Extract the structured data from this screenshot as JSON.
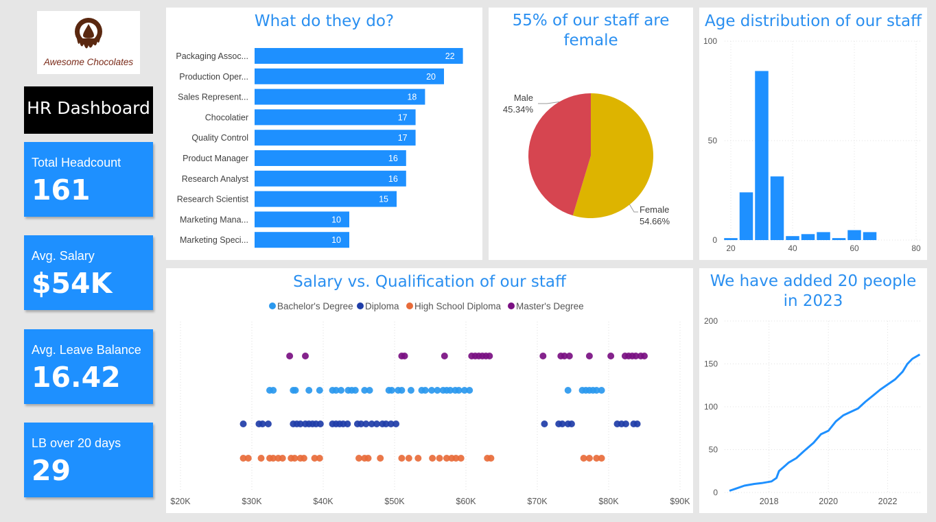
{
  "logo": {
    "text": "Awesome Chocolates"
  },
  "dashboard_title": "HR Dashboard",
  "kpis": [
    {
      "label": "Total Headcount",
      "value": "161"
    },
    {
      "label": "Avg. Salary",
      "value": "$54K"
    },
    {
      "label": "Avg. Leave Balance",
      "value": "16.42"
    },
    {
      "label": "LB over 20 days",
      "value": "29"
    }
  ],
  "colors": {
    "accent": "#1e90ff",
    "title": "#2a8ff0",
    "male": "#d64550",
    "female": "#ddb400"
  },
  "chart_data": [
    {
      "type": "bar",
      "orientation": "horizontal",
      "title": "What do they do?",
      "categories": [
        "Packaging Assoc...",
        "Production Oper...",
        "Sales Represent...",
        "Chocolatier",
        "Quality Control",
        "Product Manager",
        "Research Analyst",
        "Research Scientist",
        "Marketing Mana...",
        "Marketing Speci..."
      ],
      "values": [
        22,
        20,
        18,
        17,
        17,
        16,
        16,
        15,
        10,
        10
      ],
      "value_labels": [
        "22",
        "20",
        "18",
        "17",
        "17",
        "16",
        "16",
        "15",
        "10",
        "10"
      ]
    },
    {
      "type": "pie",
      "title": "55% of our staff are female",
      "slices": [
        {
          "name": "Male",
          "value": 45.34,
          "label": "45.34%",
          "color": "#d64550"
        },
        {
          "name": "Female",
          "value": 54.66,
          "label": "54.66%",
          "color": "#ddb400"
        }
      ]
    },
    {
      "type": "bar",
      "title": "Age distribution of our staff",
      "bin_width": 5,
      "bins": [
        20,
        25,
        30,
        35,
        40,
        45,
        50,
        55,
        60,
        65
      ],
      "values": [
        1,
        24,
        85,
        32,
        2,
        3,
        4,
        1,
        5,
        4
      ],
      "xlim": [
        18,
        82
      ],
      "ylim": [
        0,
        100
      ],
      "xticks": [
        "20",
        "40",
        "60",
        "80"
      ],
      "yticks": [
        "0",
        "50",
        "100"
      ],
      "grid": true
    },
    {
      "type": "scatter",
      "title": "Salary vs. Qualification of our staff",
      "legend_position": "top",
      "xlim": [
        20000,
        90000
      ],
      "xticks": [
        "$20K",
        "$30K",
        "$40K",
        "$50K",
        "$60K",
        "$70K",
        "$80K",
        "$90K"
      ],
      "series": [
        {
          "name": "Bachelor's Degree",
          "color": "#2a98ee",
          "x": [
            32500,
            33000,
            35800,
            36100,
            38000,
            39500,
            41300,
            41800,
            42500,
            43500,
            44000,
            44500,
            45800,
            46500,
            49200,
            49600,
            50500,
            51000,
            52300,
            53800,
            54300,
            55200,
            56000,
            56800,
            57300,
            57800,
            58500,
            59000,
            59800,
            60500,
            74300,
            76300,
            76800,
            77300,
            77800,
            78300,
            79000
          ]
        },
        {
          "name": "Diploma",
          "color": "#1f3da8",
          "x": [
            28800,
            31000,
            31500,
            32300,
            35800,
            36300,
            36800,
            37500,
            38000,
            38500,
            39000,
            39600,
            41300,
            41800,
            42300,
            42800,
            43400,
            44800,
            45300,
            46000,
            46800,
            47500,
            48300,
            48800,
            49500,
            50200,
            71000,
            73000,
            73500,
            74300,
            74800,
            81200,
            81800,
            82400,
            83500,
            84000
          ]
        },
        {
          "name": "High School Diploma",
          "color": "#e86b3a",
          "x": [
            28800,
            29500,
            31300,
            32500,
            33000,
            33700,
            34300,
            35500,
            36000,
            36800,
            37300,
            38800,
            39500,
            45000,
            45800,
            46300,
            48000,
            51000,
            52000,
            53300,
            55300,
            56300,
            57300,
            58000,
            58600,
            59300,
            63000,
            63500,
            76500,
            77300,
            78300,
            79000
          ]
        },
        {
          "name": "Master's Degree",
          "color": "#7a1082",
          "x": [
            35300,
            37500,
            51000,
            51400,
            57000,
            60800,
            61300,
            61800,
            62300,
            62800,
            63300,
            70800,
            73300,
            73800,
            74500,
            77300,
            80300,
            82300,
            82800,
            83300,
            83800,
            84500,
            85000
          ]
        }
      ]
    },
    {
      "type": "line",
      "title": "We have added 20 people in 2023",
      "xlim": [
        "2017-01-01",
        "2023-08-31"
      ],
      "ylim": [
        0,
        200
      ],
      "xticks": [
        "2018",
        "2020",
        "2022"
      ],
      "yticks": [
        "0",
        "50",
        "100",
        "150",
        "200"
      ],
      "grid": true,
      "x": [
        "2017-03-01",
        "2017-06-01",
        "2017-09-01",
        "2018-01-01",
        "2018-04-01",
        "2018-08-01",
        "2018-10-01",
        "2018-11-01",
        "2019-01-01",
        "2019-03-01",
        "2019-06-01",
        "2019-09-01",
        "2020-01-01",
        "2020-04-01",
        "2020-07-01",
        "2020-10-01",
        "2021-01-01",
        "2021-04-01",
        "2021-07-01",
        "2021-10-01",
        "2022-01-01",
        "2022-04-01",
        "2022-07-01",
        "2022-10-01",
        "2023-01-01",
        "2023-03-01",
        "2023-05-01",
        "2023-08-01"
      ],
      "y": [
        2,
        5,
        8,
        10,
        11,
        13,
        17,
        25,
        30,
        35,
        40,
        48,
        58,
        68,
        72,
        83,
        90,
        94,
        98,
        106,
        113,
        120,
        126,
        132,
        141,
        150,
        156,
        161
      ]
    }
  ]
}
